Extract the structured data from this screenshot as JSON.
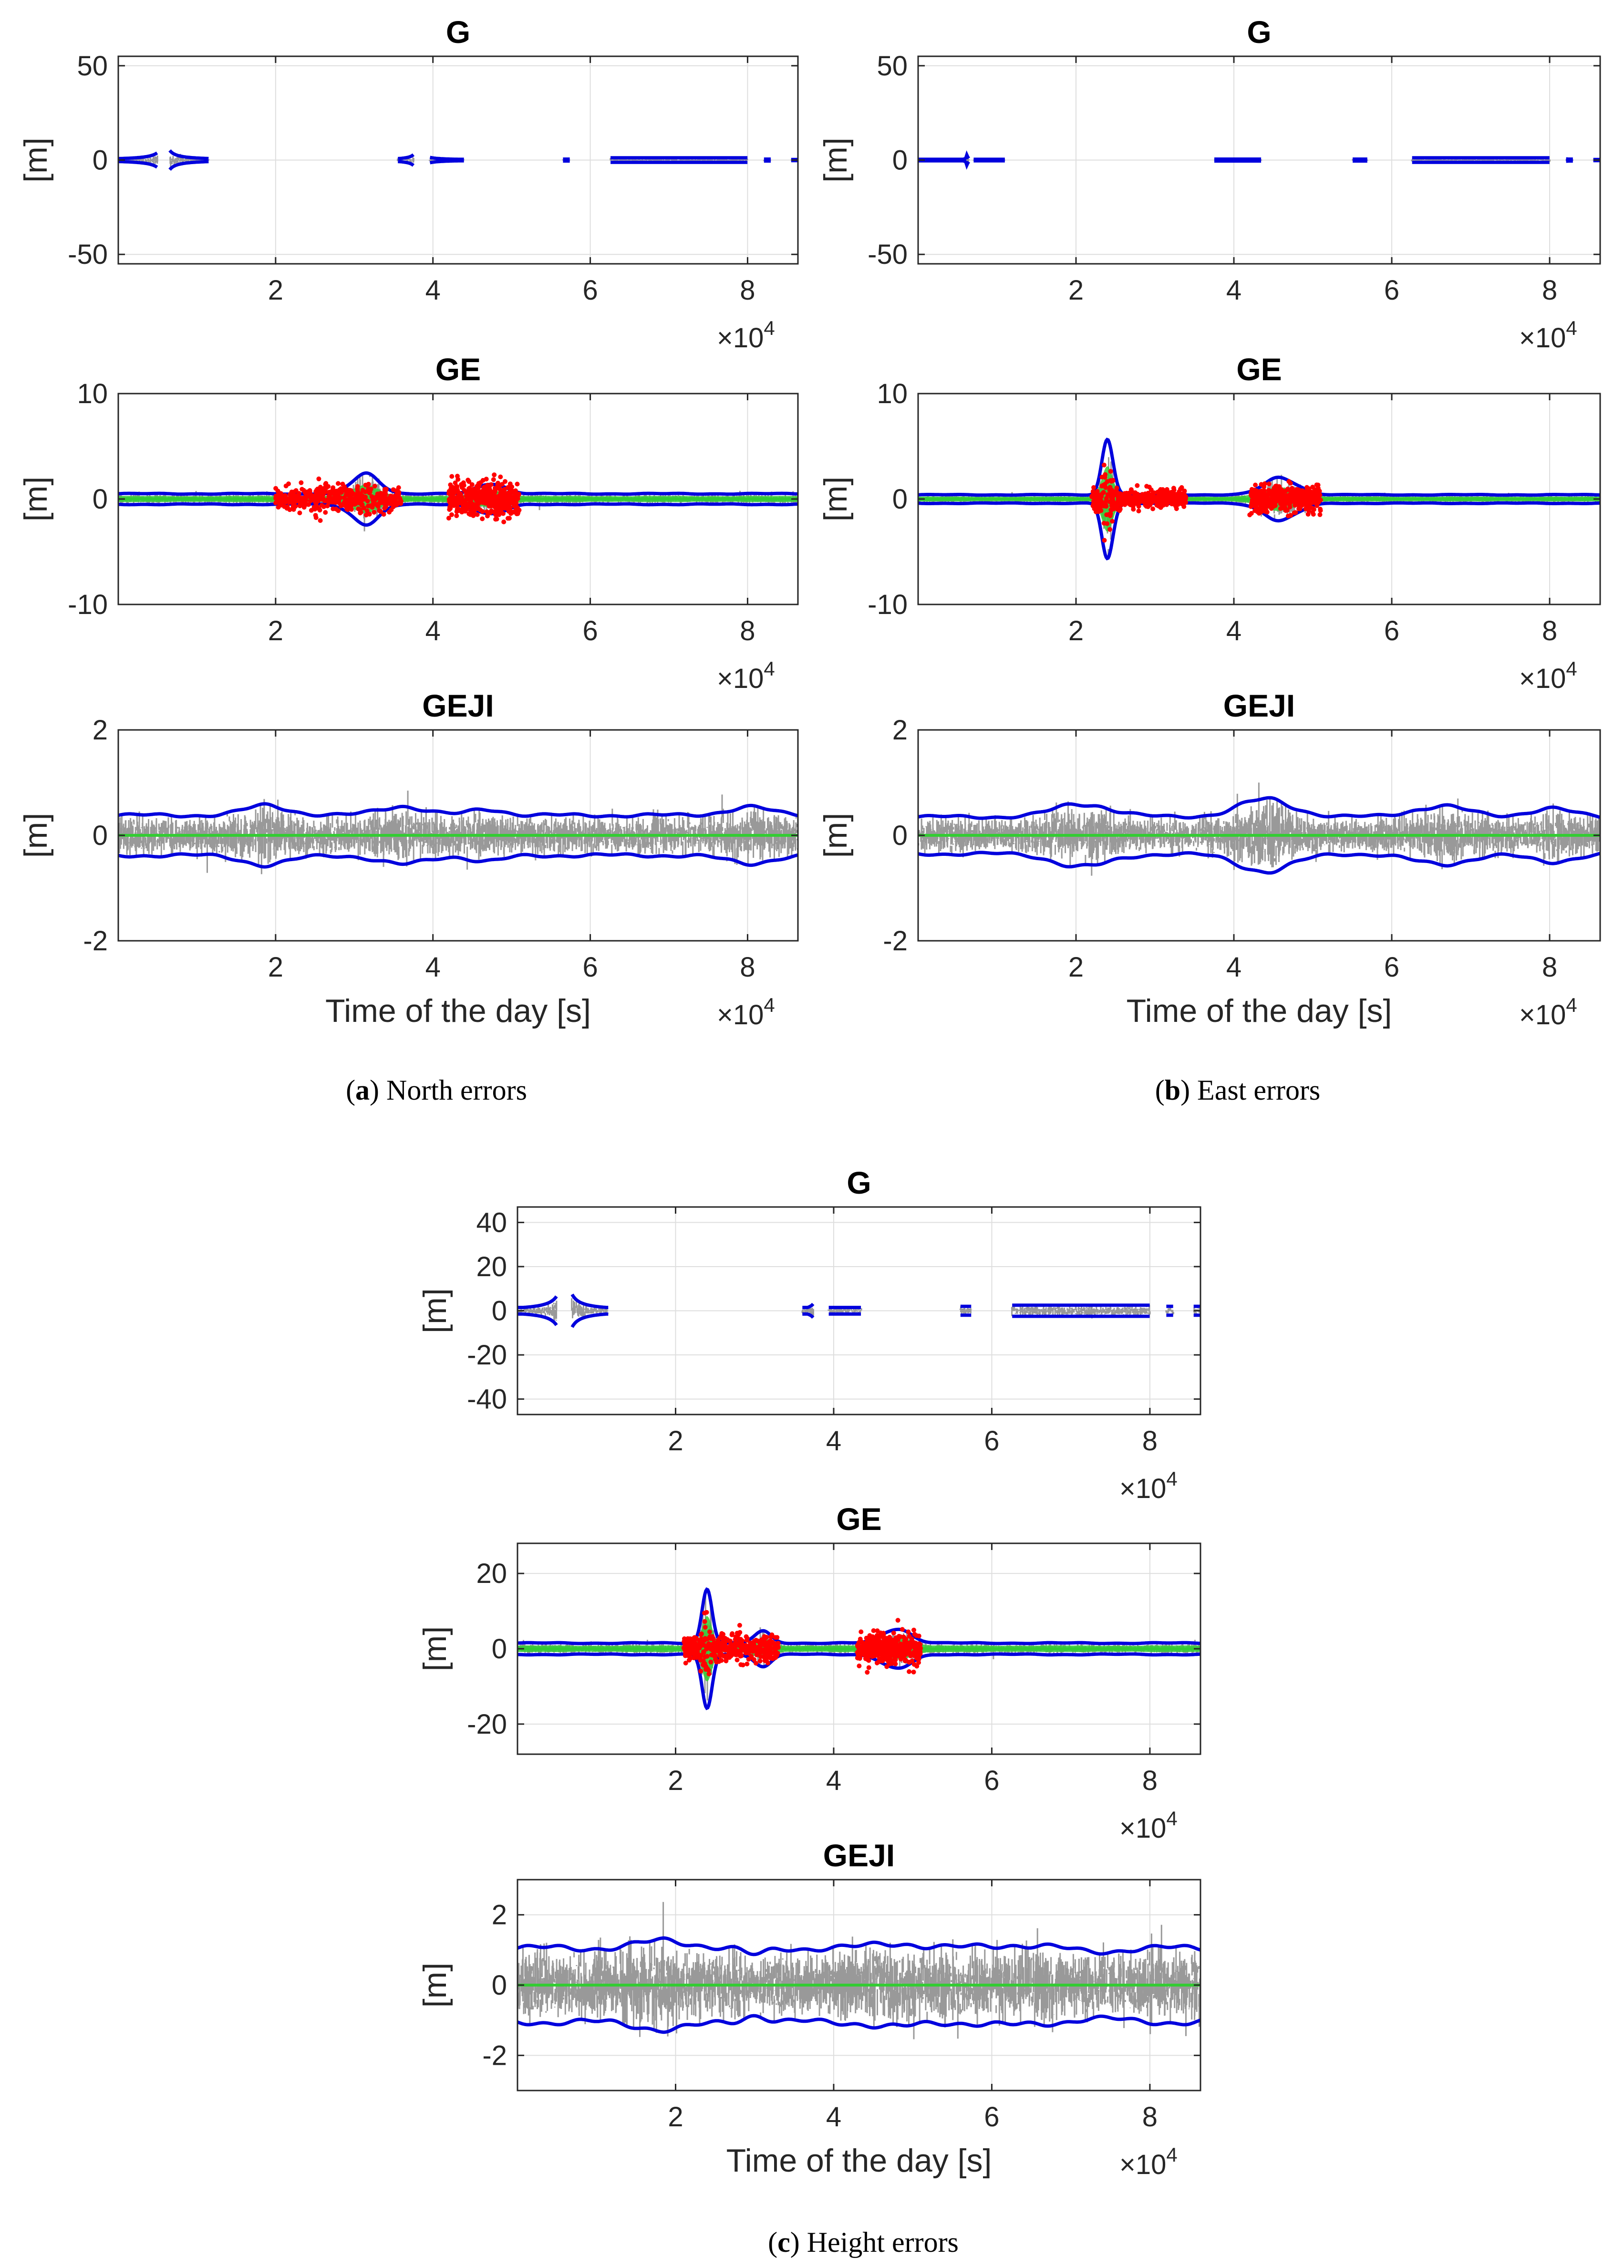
{
  "figure": {
    "captions": [
      {
        "letter": "a",
        "text": "North errors"
      },
      {
        "letter": "b",
        "text": "East errors"
      },
      {
        "letter": "c",
        "text": "Height errors"
      }
    ],
    "open_paren": "(",
    "close_paren": ")",
    "colors": {
      "raw_error": "#999999",
      "bound": "#0000dd",
      "fixed": "#33cc33",
      "float": "#ff0000",
      "axis": "#262626",
      "grid": "#dedede"
    }
  },
  "chart_data": [
    {
      "id": "north-G",
      "type": "scatter",
      "group": "a",
      "title": "G",
      "ylabel": "[m]",
      "xlabel": "",
      "xlim": [
        0,
        86400
      ],
      "ylim": [
        -55,
        55
      ],
      "yticks": [
        -50,
        0,
        50
      ],
      "xticks": [
        20000,
        40000,
        60000,
        80000
      ],
      "xtick_labels": [
        "2",
        "4",
        "6",
        "8"
      ],
      "ytick_labels": [
        "-50",
        "0",
        "50"
      ],
      "x_multiplier": "×10",
      "x_exponent": "4",
      "bound_segments": [
        [
          0,
          5000,
          0.4
        ],
        [
          6500,
          11500,
          0.4
        ],
        [
          35500,
          37600,
          0.4
        ],
        [
          39500,
          44000,
          0.4
        ],
        [
          56500,
          57500,
          0.5
        ],
        [
          62500,
          80000,
          1.2
        ],
        [
          82000,
          83000,
          0.5
        ],
        [
          85500,
          86400,
          0.3
        ]
      ],
      "spikes": [
        [
          5900,
          16,
          5
        ],
        [
          38200,
          35,
          1
        ]
      ],
      "noise_amp": 2,
      "float_points": false
    },
    {
      "id": "east-G",
      "type": "scatter",
      "group": "b",
      "title": "G",
      "ylabel": "[m]",
      "xlabel": "",
      "xlim": [
        0,
        86400
      ],
      "ylim": [
        -55,
        55
      ],
      "yticks": [
        -50,
        0,
        50
      ],
      "xticks": [
        20000,
        40000,
        60000,
        80000
      ],
      "xtick_labels": [
        "2",
        "4",
        "6",
        "8"
      ],
      "ytick_labels": [
        "-50",
        "0",
        "50"
      ],
      "x_multiplier": "×10",
      "x_exponent": "4",
      "bound_segments": [
        [
          0,
          6500,
          0.4
        ],
        [
          7000,
          11000,
          0.4
        ],
        [
          37500,
          43500,
          0.5
        ],
        [
          55000,
          57000,
          0.5
        ],
        [
          62500,
          80000,
          1.2
        ],
        [
          82000,
          83000,
          0.5
        ],
        [
          85500,
          86400,
          0.3
        ]
      ],
      "spikes": [
        [
          6200,
          4,
          1
        ],
        [
          81000,
          12,
          1
        ]
      ],
      "noise_amp": 1,
      "float_points": false
    },
    {
      "id": "north-GE",
      "type": "scatter",
      "group": "a",
      "title": "GE",
      "ylabel": "[m]",
      "xlabel": "",
      "xlim": [
        0,
        86400
      ],
      "ylim": [
        -10,
        10
      ],
      "yticks": [
        -10,
        0,
        10
      ],
      "xticks": [
        20000,
        40000,
        60000,
        80000
      ],
      "xtick_labels": [
        "2",
        "4",
        "6",
        "8"
      ],
      "ytick_labels": [
        "-10",
        "0",
        "10"
      ],
      "x_multiplier": "×10",
      "x_exponent": "4",
      "bound_base": 0.5,
      "bumps": [
        [
          31500,
          2500,
          1.8
        ],
        [
          47500,
          2500,
          1.0
        ]
      ],
      "float_ranges": [
        [
          20000,
          36000,
          1.2
        ],
        [
          42000,
          51000,
          1.6
        ]
      ],
      "noise_amp": 0.3,
      "float_points": true
    },
    {
      "id": "east-GE",
      "type": "scatter",
      "group": "b",
      "title": "GE",
      "ylabel": "[m]",
      "xlabel": "",
      "xlim": [
        0,
        86400
      ],
      "ylim": [
        -10,
        10
      ],
      "yticks": [
        -10,
        0,
        10
      ],
      "xticks": [
        20000,
        40000,
        60000,
        80000
      ],
      "xtick_labels": [
        "2",
        "4",
        "6",
        "8"
      ],
      "ytick_labels": [
        "-10",
        "0",
        "10"
      ],
      "x_multiplier": "×10",
      "x_exponent": "4",
      "bound_base": 0.4,
      "bumps": [
        [
          24000,
          1000,
          5.5
        ],
        [
          46000,
          3000,
          1.6
        ]
      ],
      "float_ranges": [
        [
          22000,
          34000,
          0.8
        ],
        [
          42000,
          51000,
          1.2
        ]
      ],
      "noise_amp": 0.3,
      "float_points": true
    },
    {
      "id": "north-GEJI",
      "type": "scatter",
      "group": "a",
      "title": "GEJI",
      "ylabel": "[m]",
      "xlabel": "Time of the day [s]",
      "xlim": [
        0,
        86400
      ],
      "ylim": [
        -2,
        2
      ],
      "yticks": [
        -2,
        0,
        2
      ],
      "xticks": [
        20000,
        40000,
        60000,
        80000
      ],
      "xtick_labels": [
        "2",
        "4",
        "6",
        "8"
      ],
      "ytick_labels": [
        "-2",
        "0",
        "2"
      ],
      "x_multiplier": "×10",
      "x_exponent": "4",
      "bound_base": 0.38,
      "bumps": [
        [
          19000,
          4000,
          0.18
        ],
        [
          36000,
          4000,
          0.18
        ],
        [
          47000,
          3000,
          0.12
        ],
        [
          80000,
          4000,
          0.15
        ]
      ],
      "noise_amp": 0.3,
      "float_points": false
    },
    {
      "id": "east-GEJI",
      "type": "scatter",
      "group": "b",
      "title": "GEJI",
      "ylabel": "[m]",
      "xlabel": "Time of the day [s]",
      "xlim": [
        0,
        86400
      ],
      "ylim": [
        -2,
        2
      ],
      "yticks": [
        -2,
        0,
        2
      ],
      "xticks": [
        20000,
        40000,
        60000,
        80000
      ],
      "xtick_labels": [
        "2",
        "4",
        "6",
        "8"
      ],
      "ytick_labels": [
        "-2",
        "0",
        "2"
      ],
      "x_multiplier": "×10",
      "x_exponent": "4",
      "bound_base": 0.35,
      "bumps": [
        [
          21000,
          5000,
          0.25
        ],
        [
          44000,
          5000,
          0.32
        ],
        [
          66000,
          5000,
          0.2
        ],
        [
          80000,
          4000,
          0.15
        ]
      ],
      "noise_amp": 0.35,
      "float_points": false
    },
    {
      "id": "height-G",
      "type": "scatter",
      "group": "c",
      "title": "G",
      "ylabel": "[m]",
      "xlabel": "",
      "xlim": [
        0,
        86400
      ],
      "ylim": [
        -47,
        47
      ],
      "yticks": [
        -40,
        -20,
        0,
        20,
        40
      ],
      "xticks": [
        20000,
        40000,
        60000,
        80000
      ],
      "xtick_labels": [
        "2",
        "4",
        "6",
        "8"
      ],
      "ytick_labels": [
        "-40",
        "-20",
        "0",
        "20",
        "40"
      ],
      "x_multiplier": "×10",
      "x_exponent": "4",
      "bound_segments": [
        [
          0,
          5000,
          1.5
        ],
        [
          6800,
          11500,
          1.5
        ],
        [
          36000,
          37500,
          1.5
        ],
        [
          39300,
          43500,
          1.5
        ],
        [
          56000,
          57500,
          2
        ],
        [
          62500,
          80000,
          2.5
        ],
        [
          82000,
          83000,
          2
        ],
        [
          85500,
          86400,
          2
        ]
      ],
      "spikes": [
        [
          6000,
          45,
          3
        ],
        [
          38000,
          34,
          1
        ],
        [
          81000,
          15,
          1
        ]
      ],
      "noise_amp": 5,
      "float_points": false
    },
    {
      "id": "height-GE",
      "type": "scatter",
      "group": "c",
      "title": "GE",
      "ylabel": "[m]",
      "xlabel": "",
      "xlim": [
        0,
        86400
      ],
      "ylim": [
        -28,
        28
      ],
      "yticks": [
        -20,
        0,
        20
      ],
      "xticks": [
        20000,
        40000,
        60000,
        80000
      ],
      "xtick_labels": [
        "2",
        "4",
        "6",
        "8"
      ],
      "ytick_labels": [
        "-20",
        "0",
        "20"
      ],
      "x_multiplier": "×10",
      "x_exponent": "4",
      "bound_base": 1.5,
      "bumps": [
        [
          24000,
          900,
          15
        ],
        [
          31000,
          1500,
          3
        ],
        [
          48000,
          2500,
          4
        ]
      ],
      "float_ranges": [
        [
          21000,
          33000,
          3.5
        ],
        [
          43000,
          51000,
          4
        ]
      ],
      "noise_amp": 1,
      "float_points": true
    },
    {
      "id": "height-GEJI",
      "type": "scatter",
      "group": "c",
      "title": "GEJI",
      "ylabel": "[m]",
      "xlabel": "Time of the day [s]",
      "xlim": [
        0,
        86400
      ],
      "ylim": [
        -3,
        3
      ],
      "yticks": [
        -2,
        0,
        2
      ],
      "xticks": [
        20000,
        40000,
        60000,
        80000
      ],
      "xtick_labels": [
        "2",
        "4",
        "6",
        "8"
      ],
      "ytick_labels": [
        "-2",
        "0",
        "2"
      ],
      "x_multiplier": "×10",
      "x_exponent": "4",
      "bound_base": 1.05,
      "bumps": [
        [
          19000,
          5000,
          0.2
        ],
        [
          30000,
          2000,
          -0.2
        ],
        [
          48000,
          4000,
          0.15
        ],
        [
          63000,
          5000,
          0.1
        ],
        [
          73000,
          4000,
          -0.1
        ]
      ],
      "noise_amp": 0.75,
      "float_points": false
    }
  ]
}
